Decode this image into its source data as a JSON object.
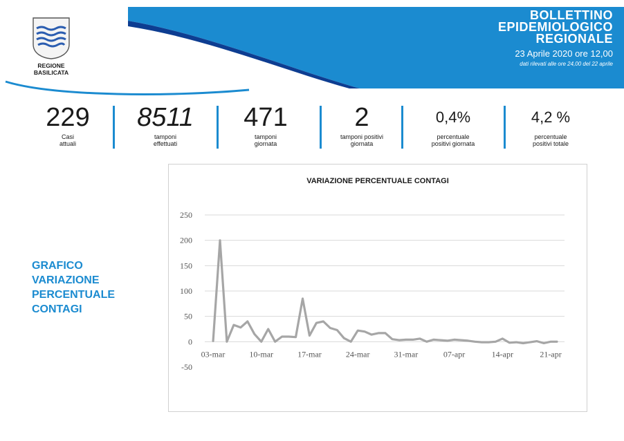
{
  "header": {
    "logo_text_line1": "REGIONE",
    "logo_text_line2": "BASILICATA",
    "title_line1": "BOLLETTINO",
    "title_line2": "EPIDEMIOLOGICO",
    "title_line3": "REGIONALE",
    "date": "23 Aprile 2020 ore 12,00",
    "note": "dati rilevati alle ore 24,00 del 22 aprile",
    "accent_color": "#1b8bd0"
  },
  "stats": [
    {
      "value": "229",
      "label1": "Casi",
      "label2": "attuali"
    },
    {
      "value": "8511",
      "label1": "tamponi",
      "label2": "effettuati"
    },
    {
      "value": "471",
      "label1": "tamponi",
      "label2": "giornata"
    },
    {
      "value": "2",
      "label1": "tamponi positivi",
      "label2": "giornata"
    },
    {
      "value": "0,4%",
      "label1": "percentuale",
      "label2": "positivi giornata"
    },
    {
      "value": "4,2 %",
      "label1": "percentuale",
      "label2": "positivi totale"
    }
  ],
  "side_title": {
    "line1": "GRAFICO",
    "line2": "VARIAZIONE",
    "line3": "PERCENTUALE",
    "line4": "CONTAGI"
  },
  "chart_data": {
    "type": "line",
    "title": "VARIAZIONE PERCENTUALE CONTAGI",
    "xlabel": "",
    "ylabel": "",
    "ylim": [
      -50,
      250
    ],
    "yticks": [
      -50,
      0,
      50,
      100,
      150,
      200,
      250
    ],
    "xtick_labels": [
      "03-mar",
      "10-mar",
      "17-mar",
      "24-mar",
      "31-mar",
      "07-apr",
      "14-apr",
      "21-apr"
    ],
    "grid": true,
    "color": "#a6a6a6",
    "x": [
      "03-mar",
      "04-mar",
      "05-mar",
      "06-mar",
      "07-mar",
      "08-mar",
      "09-mar",
      "10-mar",
      "11-mar",
      "12-mar",
      "13-mar",
      "14-mar",
      "15-mar",
      "16-mar",
      "17-mar",
      "18-mar",
      "19-mar",
      "20-mar",
      "21-mar",
      "22-mar",
      "23-mar",
      "24-mar",
      "25-mar",
      "26-mar",
      "27-mar",
      "28-mar",
      "29-mar",
      "30-mar",
      "31-mar",
      "01-apr",
      "02-apr",
      "03-apr",
      "04-apr",
      "05-apr",
      "06-apr",
      "07-apr",
      "08-apr",
      "09-apr",
      "10-apr",
      "11-apr",
      "12-apr",
      "13-apr",
      "14-apr",
      "15-apr",
      "16-apr",
      "17-apr",
      "18-apr",
      "19-apr",
      "20-apr",
      "21-apr",
      "22-apr"
    ],
    "values": [
      0,
      200,
      0,
      33,
      28,
      40,
      15,
      0,
      25,
      0,
      10,
      10,
      9,
      85,
      12,
      37,
      40,
      27,
      23,
      7,
      0,
      22,
      20,
      14,
      17,
      17,
      5,
      3,
      4,
      4,
      6,
      0,
      4,
      3,
      2,
      4,
      3,
      2,
      0,
      -1,
      -1,
      0,
      6,
      -2,
      -1,
      -3,
      -1,
      1,
      -3,
      0,
      0
    ]
  }
}
